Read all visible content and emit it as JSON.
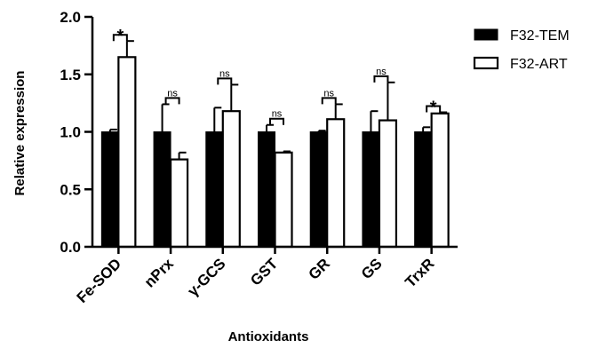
{
  "chart_data": {
    "type": "bar",
    "xlabel": "Antioxidants",
    "ylabel": "Relative expression",
    "ylim": [
      0,
      2.0
    ],
    "yticks": [
      "0.0",
      "0.5",
      "1.0",
      "1.5",
      "2.0"
    ],
    "categories": [
      "Fe-SOD",
      "nPrx",
      "γ-GCS",
      "GST",
      "GR",
      "GS",
      "TrxR"
    ],
    "series": [
      {
        "name": "F32-TEM",
        "color": "#000000",
        "fill": "solid",
        "values": [
          1.0,
          1.0,
          1.0,
          1.0,
          1.0,
          1.0,
          1.0
        ],
        "errors": [
          0.02,
          0.24,
          0.21,
          0.06,
          0.01,
          0.18,
          0.04
        ]
      },
      {
        "name": "F32-ART",
        "color": "#ffffff",
        "fill": "hollow",
        "values": [
          1.65,
          0.76,
          1.18,
          0.82,
          1.11,
          1.1,
          1.16
        ],
        "errors": [
          0.14,
          0.06,
          0.23,
          0.01,
          0.13,
          0.33,
          0.01
        ]
      }
    ],
    "significance": [
      "*",
      "ns",
      "ns",
      "ns",
      "ns",
      "ns",
      "*"
    ],
    "legend_position": "top-right",
    "grid": false
  }
}
